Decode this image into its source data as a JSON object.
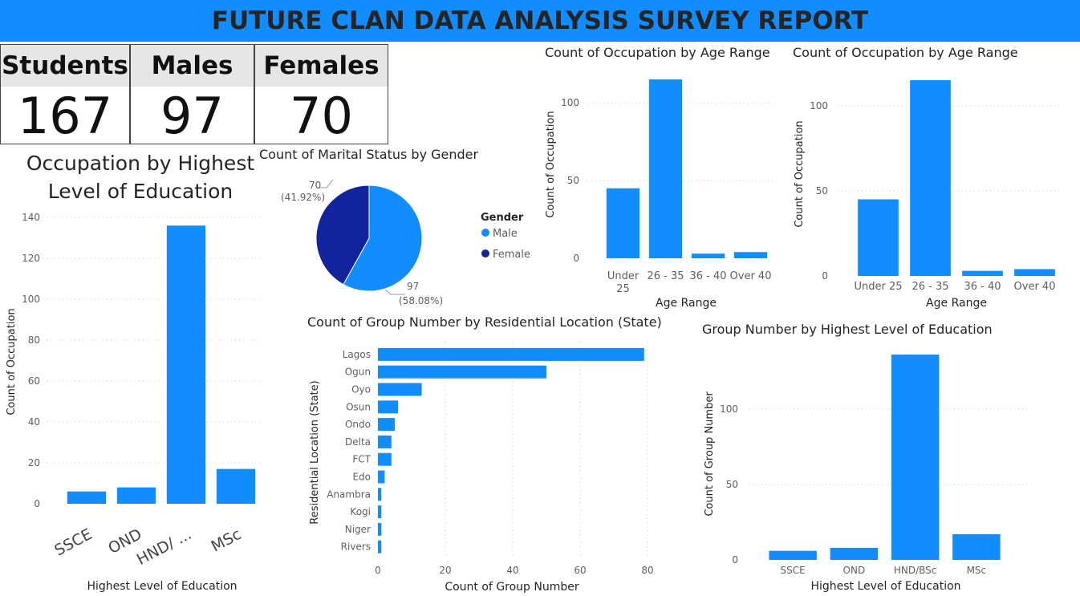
{
  "header": {
    "title": "FUTURE CLAN DATA ANALYSIS SURVEY REPORT"
  },
  "cards": [
    {
      "label": "Students",
      "value": "167"
    },
    {
      "label": "Males",
      "value": "97"
    },
    {
      "label": "Females",
      "value": "70"
    }
  ],
  "colors": {
    "banner": "#118DFF",
    "bar": "#118DFF",
    "male": "#118DFF",
    "female": "#12239E"
  },
  "chart_data": [
    {
      "id": "edu_occupation",
      "type": "bar",
      "title": "Occupation by Highest Level of Education",
      "title_lines": [
        "Occupation by Highest",
        "Level of Education"
      ],
      "xlabel": "Highest Level of Education",
      "ylabel": "Count of Occupation",
      "categories": [
        "SSCE",
        "OND",
        "HND/ ...",
        "MSc"
      ],
      "values": [
        6,
        8,
        136,
        17
      ],
      "ylim": [
        0,
        140
      ],
      "yticks": [
        0,
        20,
        40,
        60,
        80,
        100,
        120,
        140
      ],
      "grid": true
    },
    {
      "id": "marital_gender",
      "type": "pie",
      "title": "Count of Marital Status by Gender",
      "legend_title": "Gender",
      "legend_position": "right",
      "slices": [
        {
          "name": "Male",
          "value": 97,
          "label": "97",
          "pct": "(58.08%)",
          "color": "#118DFF"
        },
        {
          "name": "Female",
          "value": 70,
          "label": "70",
          "pct": "(41.92%)",
          "color": "#12239E"
        }
      ]
    },
    {
      "id": "age_occupation_1",
      "type": "bar",
      "title": "Count of Occupation by Age Range",
      "xlabel": "Age Range",
      "ylabel": "Count of Occupation",
      "categories": [
        "Under 25",
        "26 - 35",
        "36 - 40",
        "Over 40"
      ],
      "category_lines": [
        [
          "Under",
          "25"
        ],
        [
          "26 - 35"
        ],
        [
          "36 - 40"
        ],
        [
          "Over 40"
        ]
      ],
      "values": [
        45,
        115,
        3,
        4
      ],
      "ylim": [
        0,
        115
      ],
      "yticks": [
        0,
        50,
        100
      ],
      "grid": true
    },
    {
      "id": "age_occupation_2",
      "type": "bar",
      "title": "Count of Occupation by Age Range",
      "xlabel": "Age Range",
      "ylabel": "Count of Occupation",
      "categories": [
        "Under 25",
        "26 - 35",
        "36 - 40",
        "Over 40"
      ],
      "values": [
        45,
        115,
        3,
        4
      ],
      "ylim": [
        0,
        115
      ],
      "yticks": [
        0,
        50,
        100
      ],
      "grid": true
    },
    {
      "id": "state_group",
      "type": "bar",
      "orientation": "horizontal",
      "title": "Count of Group Number by Residential Location (State)",
      "xlabel": "Count of Group Number",
      "ylabel": "Residential Location (State)",
      "categories": [
        "Lagos",
        "Ogun",
        "Oyo",
        "Osun",
        "Ondo",
        "Delta",
        "FCT",
        "Edo",
        "Anambra",
        "Kogi",
        "Niger",
        "Rivers"
      ],
      "values": [
        79,
        50,
        13,
        6,
        5,
        4,
        4,
        2,
        1,
        1,
        1,
        1
      ],
      "xlim": [
        0,
        80
      ],
      "xticks": [
        0,
        20,
        40,
        60,
        80
      ],
      "grid": true
    },
    {
      "id": "edu_group",
      "type": "bar",
      "title": "Group Number by Highest Level of Education",
      "xlabel": "Highest Level of Education",
      "ylabel": "Count of Group Number",
      "categories": [
        "SSCE",
        "OND",
        "HND/BSc",
        "MSc"
      ],
      "values": [
        6,
        8,
        136,
        17
      ],
      "ylim": [
        0,
        136
      ],
      "yticks": [
        0,
        50,
        100
      ],
      "grid": true
    }
  ]
}
